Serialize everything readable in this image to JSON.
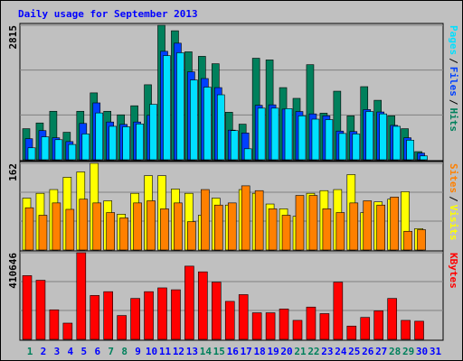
{
  "chart_data": [
    {
      "type": "bar",
      "title": "Daily usage for September 2013",
      "separator": "/",
      "categories": [
        "1",
        "2",
        "3",
        "4",
        "5",
        "6",
        "7",
        "8",
        "9",
        "10",
        "11",
        "12",
        "13",
        "14",
        "15",
        "16",
        "17",
        "18",
        "19",
        "20",
        "21",
        "22",
        "23",
        "24",
        "25",
        "26",
        "27",
        "28",
        "29",
        "30",
        "31"
      ],
      "series": [
        {
          "name": "Hits",
          "color": "#00805c",
          "values": [
            650,
            770,
            1015,
            575,
            1015,
            1400,
            1015,
            940,
            1130,
            1570,
            2815,
            2700,
            2260,
            2165,
            2010,
            995,
            745,
            2125,
            2090,
            1510,
            1285,
            1990,
            975,
            1435,
            920,
            1530,
            1245,
            920,
            650,
            170,
            0
          ]
        },
        {
          "name": "Files",
          "color": "#0040ff",
          "values": [
            440,
            610,
            460,
            380,
            760,
            1190,
            790,
            740,
            790,
            930,
            2270,
            2440,
            1840,
            1700,
            1510,
            620,
            560,
            1140,
            1150,
            1060,
            1010,
            960,
            920,
            600,
            590,
            1050,
            1000,
            720,
            460,
            140,
            0
          ]
        },
        {
          "name": "Pages",
          "color": "#00e0ff",
          "values": [
            250,
            480,
            420,
            320,
            540,
            980,
            700,
            690,
            750,
            1160,
            2180,
            2240,
            1670,
            1520,
            1360,
            610,
            230,
            1080,
            1080,
            1070,
            920,
            850,
            840,
            550,
            540,
            1010,
            960,
            700,
            410,
            80,
            0
          ]
        }
      ],
      "ylim": [
        0,
        2815
      ],
      "yticks": [
        2815
      ]
    },
    {
      "type": "bar",
      "separator": "/",
      "categories": [
        "1",
        "2",
        "3",
        "4",
        "5",
        "6",
        "7",
        "8",
        "9",
        "10",
        "11",
        "12",
        "13",
        "14",
        "15",
        "16",
        "17",
        "18",
        "19",
        "20",
        "21",
        "22",
        "23",
        "24",
        "25",
        "26",
        "27",
        "28",
        "29",
        "30",
        "31"
      ],
      "series": [
        {
          "name": "Visits",
          "color": "#ffff00",
          "values": [
            97,
            106,
            113,
            136,
            146,
            162,
            92,
            67,
            106,
            139,
            139,
            114,
            106,
            65,
            97,
            84,
            113,
            106,
            86,
            77,
            63,
            106,
            111,
            113,
            141,
            70,
            90,
            95,
            109,
            40,
            0
          ]
        },
        {
          "name": "Sites",
          "color": "#ff8000",
          "values": [
            79,
            65,
            88,
            76,
            95,
            88,
            70,
            60,
            88,
            92,
            77,
            88,
            53,
            113,
            84,
            88,
            120,
            111,
            77,
            65,
            102,
            102,
            77,
            70,
            88,
            92,
            84,
            99,
            35,
            38,
            0
          ]
        }
      ],
      "ylim": [
        0,
        162
      ],
      "yticks": [
        162
      ]
    },
    {
      "type": "bar",
      "categories": [
        "1",
        "2",
        "3",
        "4",
        "5",
        "6",
        "7",
        "8",
        "9",
        "10",
        "11",
        "12",
        "13",
        "14",
        "15",
        "16",
        "17",
        "18",
        "19",
        "20",
        "21",
        "22",
        "23",
        "24",
        "25",
        "26",
        "27",
        "28",
        "29",
        "30",
        "31"
      ],
      "category_colors": [
        "#00805c",
        "#0000ff",
        "#0000ff",
        "#0000ff",
        "#0000ff",
        "#0000ff",
        "#00805c",
        "#00805c",
        "#0000ff",
        "#0000ff",
        "#0000ff",
        "#0000ff",
        "#0000ff",
        "#00805c",
        "#00805c",
        "#0000ff",
        "#0000ff",
        "#0000ff",
        "#0000ff",
        "#0000ff",
        "#00805c",
        "#00805c",
        "#0000ff",
        "#0000ff",
        "#0000ff",
        "#0000ff",
        "#0000ff",
        "#00805c",
        "#00805c",
        "#0000ff",
        "#0000ff"
      ],
      "series": [
        {
          "name": "KBytes",
          "color": "#ff0000",
          "values": [
            302000,
            280000,
            140000,
            77000,
            410646,
            208000,
            226000,
            113000,
            194000,
            226000,
            244000,
            235000,
            347000,
            320000,
            271000,
            180000,
            212000,
            126000,
            126000,
            144000,
            90000,
            153000,
            122000,
            271000,
            63000,
            104000,
            135000,
            194000,
            90000,
            86000,
            0
          ]
        }
      ],
      "ylim": [
        0,
        410646
      ],
      "yticks": [
        410646
      ]
    }
  ]
}
